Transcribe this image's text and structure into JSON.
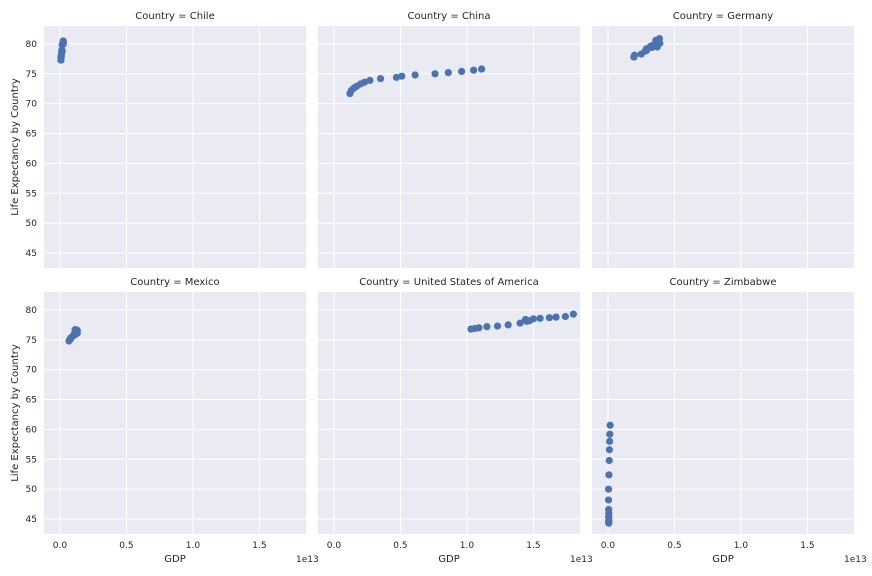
{
  "chart_data": {
    "type": "scatter",
    "facet_label_prefix": "Country = ",
    "xlabel": "GDP",
    "ylabel": "Life Expectancy by Country",
    "x_offset_label": "1e13",
    "x_scale": 10000000000000.0,
    "xlim": [
      -0.12,
      1.85
    ],
    "ylim": [
      42.5,
      83
    ],
    "x_ticks": [
      0,
      0.5,
      1,
      1.5
    ],
    "x_tick_labels": [
      "0.0",
      "0.5",
      "1.0",
      "1.5"
    ],
    "y_ticks": [
      45,
      50,
      55,
      60,
      65,
      70,
      75,
      80
    ],
    "y_tick_labels": [
      "45",
      "50",
      "55",
      "60",
      "65",
      "70",
      "75",
      "80"
    ],
    "point_color": "#4c72b0",
    "background_color": "#eaeaf2",
    "grid": true,
    "facets": [
      {
        "country": "Chile",
        "points": [
          [
            0.008,
            77.3
          ],
          [
            0.007,
            77.3
          ],
          [
            0.007,
            77.8
          ],
          [
            0.008,
            77.9
          ],
          [
            0.01,
            78.0
          ],
          [
            0.012,
            78.4
          ],
          [
            0.013,
            78.9
          ],
          [
            0.016,
            78.9
          ],
          [
            0.017,
            78.8
          ],
          [
            0.017,
            79.8
          ],
          [
            0.02,
            79.9
          ],
          [
            0.023,
            80.1
          ],
          [
            0.025,
            80.1
          ],
          [
            0.026,
            80.3
          ],
          [
            0.024,
            80.5
          ],
          [
            0.024,
            80.0
          ]
        ]
      },
      {
        "country": "China",
        "points": [
          [
            0.12,
            71.7
          ],
          [
            0.13,
            72.2
          ],
          [
            0.15,
            72.6
          ],
          [
            0.17,
            72.9
          ],
          [
            0.2,
            73.3
          ],
          [
            0.23,
            73.6
          ],
          [
            0.27,
            73.9
          ],
          [
            0.35,
            74.2
          ],
          [
            0.47,
            74.4
          ],
          [
            0.51,
            74.6
          ],
          [
            0.61,
            74.8
          ],
          [
            0.76,
            75.0
          ],
          [
            0.86,
            75.2
          ],
          [
            0.96,
            75.4
          ],
          [
            1.05,
            75.6
          ],
          [
            1.11,
            75.8
          ]
        ]
      },
      {
        "country": "Germany",
        "points": [
          [
            0.195,
            77.8
          ],
          [
            0.2,
            78.1
          ],
          [
            0.25,
            78.3
          ],
          [
            0.28,
            78.8
          ],
          [
            0.29,
            78.9
          ],
          [
            0.29,
            79.2
          ],
          [
            0.33,
            79.4
          ],
          [
            0.37,
            79.5
          ],
          [
            0.32,
            79.6
          ],
          [
            0.34,
            79.8
          ],
          [
            0.37,
            79.9
          ],
          [
            0.374,
            80.0
          ],
          [
            0.39,
            80.1
          ],
          [
            0.37,
            80.4
          ],
          [
            0.36,
            80.6
          ],
          [
            0.387,
            80.9
          ]
        ]
      },
      {
        "country": "Mexico",
        "points": [
          [
            0.068,
            74.8
          ],
          [
            0.072,
            75.0
          ],
          [
            0.078,
            75.1
          ],
          [
            0.08,
            75.3
          ],
          [
            0.082,
            75.3
          ],
          [
            0.087,
            75.4
          ],
          [
            0.1,
            75.7
          ],
          [
            0.11,
            75.8
          ],
          [
            0.12,
            76.0
          ],
          [
            0.13,
            76.1
          ],
          [
            0.11,
            76.1
          ],
          [
            0.12,
            76.3
          ],
          [
            0.12,
            76.5
          ],
          [
            0.126,
            76.6
          ],
          [
            0.13,
            76.6
          ],
          [
            0.114,
            76.7
          ]
        ]
      },
      {
        "country": "United States of America",
        "points": [
          [
            1.03,
            76.8
          ],
          [
            1.06,
            76.9
          ],
          [
            1.09,
            77.0
          ],
          [
            1.15,
            77.2
          ],
          [
            1.23,
            77.3
          ],
          [
            1.31,
            77.5
          ],
          [
            1.4,
            77.8
          ],
          [
            1.45,
            78.1
          ],
          [
            1.47,
            78.2
          ],
          [
            1.44,
            78.4
          ],
          [
            1.5,
            78.5
          ],
          [
            1.55,
            78.6
          ],
          [
            1.62,
            78.7
          ],
          [
            1.67,
            78.8
          ],
          [
            1.74,
            78.9
          ],
          [
            1.8,
            79.3
          ]
        ]
      },
      {
        "country": "Zimbabwe",
        "points": [
          [
            0.0066,
            46.0
          ],
          [
            0.0065,
            45.3
          ],
          [
            0.0064,
            44.8
          ],
          [
            0.0064,
            44.5
          ],
          [
            0.006,
            44.3
          ],
          [
            0.0053,
            44.6
          ],
          [
            0.0054,
            45.4
          ],
          [
            0.0053,
            46.6
          ],
          [
            0.0044,
            48.2
          ],
          [
            0.0046,
            50.0
          ],
          [
            0.0072,
            52.4
          ],
          [
            0.0096,
            54.8
          ],
          [
            0.0109,
            56.6
          ],
          [
            0.0125,
            58.0
          ],
          [
            0.0138,
            59.2
          ],
          [
            0.0162,
            60.7
          ]
        ]
      }
    ]
  }
}
